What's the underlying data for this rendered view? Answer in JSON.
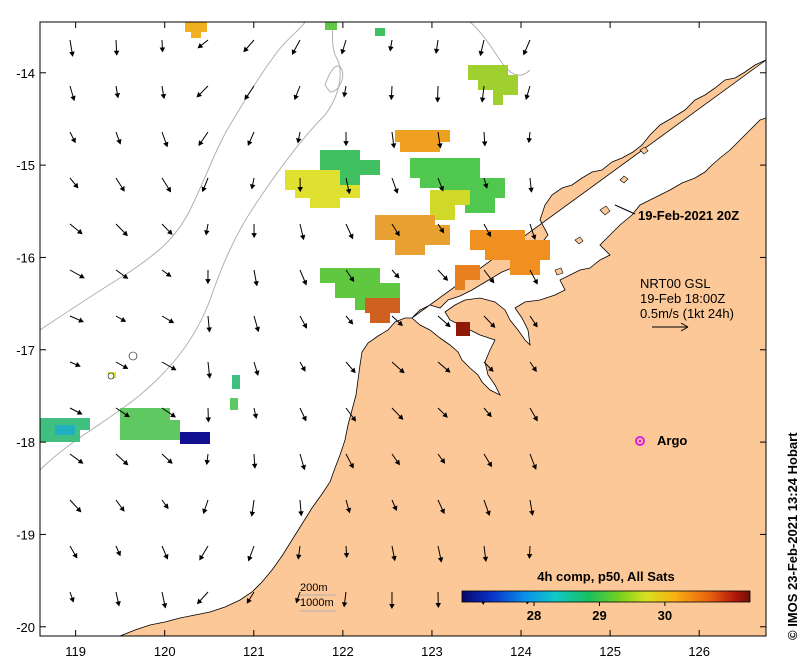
{
  "map": {
    "lon_range": [
      118.6,
      126.75
    ],
    "lat_range": [
      -20.1,
      -13.45
    ],
    "x_ticks": [
      {
        "value": 119,
        "label": "119"
      },
      {
        "value": 120,
        "label": "120"
      },
      {
        "value": 121,
        "label": "121"
      },
      {
        "value": 122,
        "label": "122"
      },
      {
        "value": 123,
        "label": "123"
      },
      {
        "value": 124,
        "label": "124"
      },
      {
        "value": 125,
        "label": "125"
      },
      {
        "value": 126,
        "label": "126"
      }
    ],
    "y_ticks": [
      {
        "value": -14,
        "label": "-14"
      },
      {
        "value": -15,
        "label": "-15"
      },
      {
        "value": -16,
        "label": "-16"
      },
      {
        "value": -17,
        "label": "-17"
      },
      {
        "value": -18,
        "label": "-18"
      },
      {
        "value": -19,
        "label": "-19"
      },
      {
        "value": -20,
        "label": "-20"
      }
    ],
    "colors": {
      "land": "#fdc898",
      "ocean": "#ffffff",
      "coast": "#000000",
      "isobath": "#b0b0b0",
      "argo": "#e020e0"
    }
  },
  "annotations": {
    "date_label": "19-Feb-2021 20Z",
    "vector_source": "NRT00 GSL",
    "vector_time": "19-Feb 18:00Z",
    "vector_scale": "0.5m/s (1kt 24h)",
    "argo_label": "Argo",
    "depth_200": "200m",
    "depth_1000": "1000m",
    "credit": "© IMOS 23-Feb-2021 13:24 Hobart"
  },
  "colorbar": {
    "title": "4h comp, p50, All Sats",
    "range": [
      26.9,
      31.3
    ],
    "tick_labels": [
      {
        "value": 28,
        "label": "28"
      },
      {
        "value": 29,
        "label": "29"
      },
      {
        "value": 30,
        "label": "30"
      }
    ],
    "stops": [
      "#08086a",
      "#0a30c8",
      "#0a90e8",
      "#10c8c8",
      "#18c060",
      "#70d020",
      "#d8e020",
      "#f8b010",
      "#e86010",
      "#b01808",
      "#701008"
    ]
  }
}
